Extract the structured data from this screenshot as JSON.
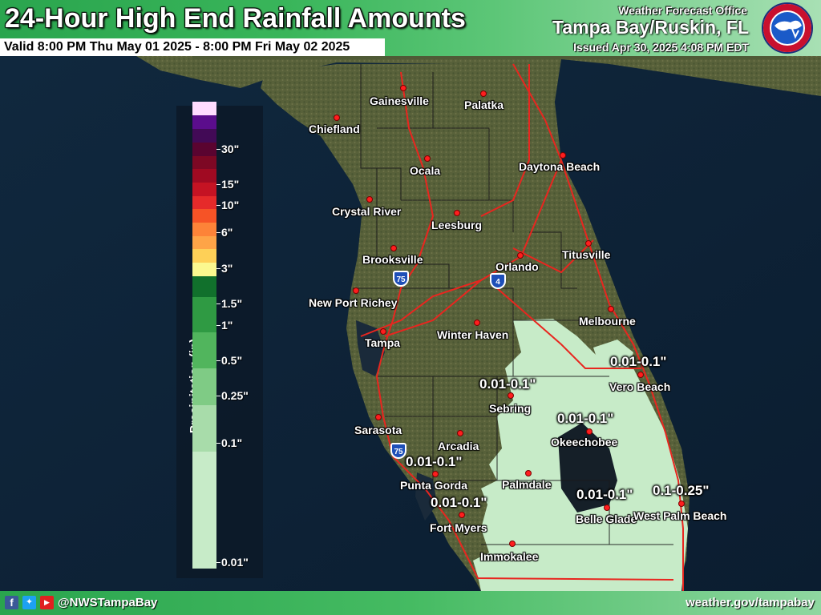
{
  "header": {
    "title": "24-Hour High End Rainfall Amounts",
    "valid": "Valid 8:00 PM Thu May 01 2025 - 8:00 PM Fri May 02 2025",
    "office_line1": "Weather Forecast Office",
    "office_line2": "Tampa Bay/Ruskin, FL",
    "issued": "Issued Apr 30, 2025 4:08 PM EDT",
    "logo_text": "NATIONAL WEATHER SERVICE"
  },
  "legend": {
    "title": "Precipitation (in)",
    "ticks": [
      "30\"",
      "15\"",
      "10\"",
      "6\"",
      "3\"",
      "1.5\"",
      "1\"",
      "0.5\"",
      "0.25\"",
      "0.1\"",
      "0.01\""
    ],
    "colors": [
      "#c7ebc8",
      "#a8dcaa",
      "#7fcb85",
      "#51b55d",
      "#2f9a43",
      "#11702c",
      "#fbf88f",
      "#fed057",
      "#fea447",
      "#fd8338",
      "#f65326",
      "#e62a2a",
      "#c51323",
      "#a00a22",
      "#7d0824",
      "#5a0430",
      "#420a56",
      "#5b0d8c",
      "#ffdcff"
    ]
  },
  "cities": [
    {
      "name": "Gainesville"
    },
    {
      "name": "Palatka"
    },
    {
      "name": "Chiefland"
    },
    {
      "name": "Ocala"
    },
    {
      "name": "Daytona Beach"
    },
    {
      "name": "Crystal River"
    },
    {
      "name": "Leesburg"
    },
    {
      "name": "Brooksville"
    },
    {
      "name": "Titusville"
    },
    {
      "name": "Orlando"
    },
    {
      "name": "New Port Richey"
    },
    {
      "name": "Melbourne"
    },
    {
      "name": "Winter Haven"
    },
    {
      "name": "Tampa"
    },
    {
      "name": "Vero Beach"
    },
    {
      "name": "Sebring"
    },
    {
      "name": "Okeechobee"
    },
    {
      "name": "Sarasota"
    },
    {
      "name": "Arcadia"
    },
    {
      "name": "Punta Gorda"
    },
    {
      "name": "Palmdale"
    },
    {
      "name": "Belle Glade"
    },
    {
      "name": "West Palm Beach"
    },
    {
      "name": "Fort Myers"
    },
    {
      "name": "Immokalee"
    }
  ],
  "amounts": [
    {
      "text": "0.01-0.1\""
    },
    {
      "text": "0.01-0.1\""
    },
    {
      "text": "0.01-0.1\""
    },
    {
      "text": "0.01-0.1\""
    },
    {
      "text": "0.01-0.1\""
    },
    {
      "text": "0.01-0.1\""
    },
    {
      "text": "0.1-0.25\""
    }
  ],
  "highways": [
    {
      "label": "75",
      "color": "#1e4fb8"
    },
    {
      "label": "4",
      "color": "#1e4fb8"
    },
    {
      "label": "75",
      "color": "#1e4fb8"
    }
  ],
  "footer": {
    "handle": "@NWSTampaBay",
    "url": "weather.gov/tampabay",
    "icons": [
      "facebook-icon",
      "twitter-icon",
      "youtube-icon"
    ]
  },
  "colors": {
    "header_green": "#2aa54e",
    "city_dot": "#ff1e1e",
    "roads": "#e8261f",
    "light_rain": "#c7ebc8"
  }
}
